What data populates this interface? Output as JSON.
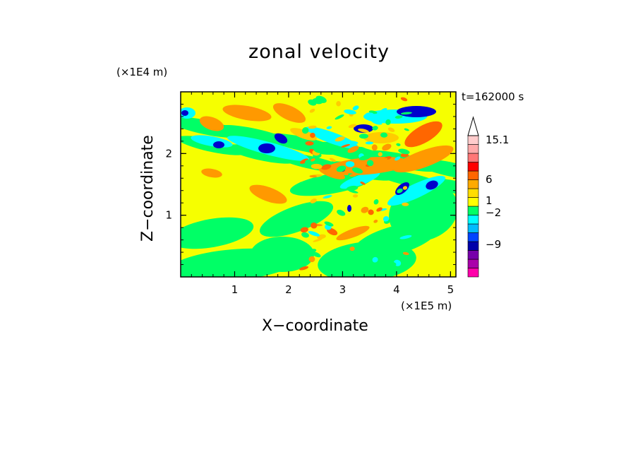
{
  "chart_data": {
    "type": "heatmap",
    "title": "zonal velocity",
    "xlabel": "X−coordinate",
    "ylabel": "Z−coordinate",
    "x_unit_label": "(×1E5 m)",
    "y_unit_label": "(×1E4 m)",
    "time_label": "t=162000 s",
    "xlim": [
      0,
      5.1
    ],
    "ylim": [
      0,
      3.0
    ],
    "x_ticks": [
      1,
      2,
      3,
      4,
      5
    ],
    "x_tick_labels": [
      "1",
      "2",
      "3",
      "4",
      "5"
    ],
    "y_ticks": [
      1,
      2
    ],
    "y_tick_labels": [
      "1",
      "2"
    ],
    "colorbar": {
      "labels": [
        {
          "value": 15.1,
          "text": "15.1"
        },
        {
          "value": 6,
          "text": "6"
        },
        {
          "value": 1,
          "text": "1"
        },
        {
          "value": -2,
          "text": "−2"
        },
        {
          "value": -9,
          "text": "−9"
        }
      ],
      "levels": [
        {
          "color": "#ff00aa"
        },
        {
          "color": "#aa00aa"
        },
        {
          "color": "#7700aa"
        },
        {
          "color": "#0000aa"
        },
        {
          "color": "#0044ff"
        },
        {
          "color": "#00bbff"
        },
        {
          "color": "#00ffff"
        },
        {
          "color": "#00ff66"
        },
        {
          "color": "#ffff00"
        },
        {
          "color": "#ffdd00"
        },
        {
          "color": "#ffaa00"
        },
        {
          "color": "#ff6600"
        },
        {
          "color": "#ff0000"
        },
        {
          "color": "#ff7777"
        },
        {
          "color": "#ffaaaa"
        },
        {
          "color": "#ffcccc"
        }
      ],
      "extend_top_color": "#ffffff"
    },
    "field_palette": {
      "bg": "#f6ff00",
      "green": "#00ff66",
      "cyan": "#00ffff",
      "blue": "#0000cc",
      "orange": "#ff9900",
      "lightorange": "#ffcc00",
      "red": "#ff6600"
    }
  }
}
